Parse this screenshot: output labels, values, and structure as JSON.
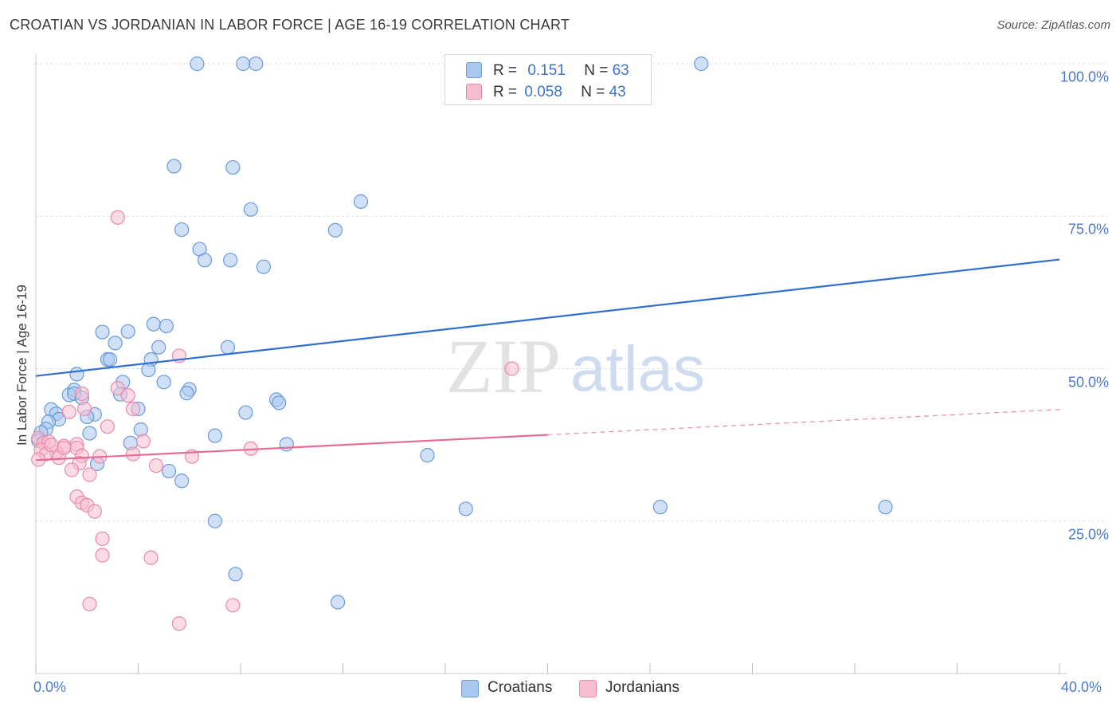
{
  "title": "CROATIAN VS JORDANIAN IN LABOR FORCE | AGE 16-19 CORRELATION CHART",
  "source": "Source: ZipAtlas.com",
  "watermark": {
    "zip": "ZIP",
    "atlas": "atlas"
  },
  "legend": {
    "rows": [
      {
        "r_label": "R =",
        "r_value": "0.151",
        "n_label": "N =",
        "n_value": "63"
      },
      {
        "r_label": "R =",
        "r_value": "0.058",
        "n_label": "N =",
        "n_value": "43"
      }
    ]
  },
  "bottom_legend": [
    "Croatians",
    "Jordanians"
  ],
  "colors": {
    "croatians_fill": "#a9c8f0",
    "croatians_stroke": "#6a9ad8",
    "croatians_line": "#2f6fcf",
    "jordanians_fill": "#f7bdd0",
    "jordanians_stroke": "#e88aab",
    "jordanians_line": "#e56b98",
    "tick_text": "#4a7bc8",
    "grid": "#dddddd"
  },
  "chart_data": {
    "type": "scatter",
    "title": "CROATIAN VS JORDANIAN IN LABOR FORCE | AGE 16-19 CORRELATION CHART",
    "xlabel": "",
    "ylabel": "In Labor Force | Age 16-19",
    "xlim": [
      0,
      40
    ],
    "ylim": [
      0,
      100
    ],
    "x_tick_labels": [
      "0.0%",
      "40.0%"
    ],
    "y_ticks": [
      100,
      75,
      50,
      25
    ],
    "y_tick_labels": [
      "100.0%",
      "75.0%",
      "50.0%",
      "25.0%"
    ],
    "series": [
      {
        "name": "Croatians",
        "R": 0.151,
        "N": 63,
        "trend": {
          "x0": 0,
          "y0": 48.8,
          "x1": 40,
          "y1": 67.9,
          "dashed_from": null
        },
        "points": [
          [
            6.3,
            100
          ],
          [
            8.1,
            100
          ],
          [
            8.6,
            100
          ],
          [
            26.0,
            100
          ],
          [
            5.4,
            83.2
          ],
          [
            7.7,
            83.0
          ],
          [
            12.7,
            77.4
          ],
          [
            8.4,
            76.1
          ],
          [
            5.7,
            72.8
          ],
          [
            11.7,
            72.7
          ],
          [
            6.4,
            69.6
          ],
          [
            6.6,
            67.8
          ],
          [
            7.6,
            67.8
          ],
          [
            8.9,
            66.7
          ],
          [
            2.6,
            56.0
          ],
          [
            3.6,
            56.1
          ],
          [
            4.6,
            57.3
          ],
          [
            5.1,
            57.0
          ],
          [
            3.1,
            54.2
          ],
          [
            4.8,
            53.5
          ],
          [
            7.5,
            53.5
          ],
          [
            2.8,
            51.5
          ],
          [
            2.9,
            51.5
          ],
          [
            4.5,
            51.5
          ],
          [
            4.4,
            49.8
          ],
          [
            1.6,
            49.1
          ],
          [
            3.4,
            47.8
          ],
          [
            5.0,
            47.8
          ],
          [
            1.5,
            46.5
          ],
          [
            6.0,
            46.6
          ],
          [
            5.9,
            46.0
          ],
          [
            1.3,
            45.7
          ],
          [
            1.5,
            45.9
          ],
          [
            3.3,
            45.8
          ],
          [
            1.8,
            45.2
          ],
          [
            9.4,
            44.9
          ],
          [
            9.5,
            44.4
          ],
          [
            0.6,
            43.3
          ],
          [
            4.0,
            43.4
          ],
          [
            0.8,
            42.6
          ],
          [
            8.2,
            42.8
          ],
          [
            2.3,
            42.5
          ],
          [
            2.0,
            42.1
          ],
          [
            0.9,
            41.7
          ],
          [
            0.5,
            41.3
          ],
          [
            0.4,
            40.1
          ],
          [
            4.1,
            40.0
          ],
          [
            0.2,
            39.5
          ],
          [
            2.1,
            39.4
          ],
          [
            7.0,
            39.0
          ],
          [
            3.7,
            37.8
          ],
          [
            9.8,
            37.6
          ],
          [
            15.3,
            35.8
          ],
          [
            2.4,
            34.4
          ],
          [
            5.2,
            33.2
          ],
          [
            5.7,
            31.6
          ],
          [
            16.8,
            27.0
          ],
          [
            24.4,
            27.3
          ],
          [
            33.2,
            27.3
          ],
          [
            7.0,
            25.0
          ],
          [
            7.8,
            16.3
          ],
          [
            11.8,
            11.7
          ],
          [
            0.1,
            38.2
          ]
        ]
      },
      {
        "name": "Jordanians",
        "R": 0.058,
        "N": 43,
        "trend": {
          "x0": 0,
          "y0": 35.0,
          "x1": 40,
          "y1": 43.3,
          "dashed_from": 20
        },
        "points": [
          [
            3.2,
            74.8
          ],
          [
            5.6,
            52.1
          ],
          [
            18.6,
            50.0
          ],
          [
            1.8,
            45.9
          ],
          [
            3.2,
            46.8
          ],
          [
            3.6,
            45.6
          ],
          [
            1.3,
            42.9
          ],
          [
            1.9,
            43.4
          ],
          [
            3.8,
            43.4
          ],
          [
            2.8,
            40.5
          ],
          [
            0.1,
            38.6
          ],
          [
            0.3,
            37.8
          ],
          [
            0.5,
            38.0
          ],
          [
            1.6,
            37.6
          ],
          [
            4.2,
            38.1
          ],
          [
            0.2,
            36.7
          ],
          [
            1.1,
            37.3
          ],
          [
            1.6,
            37.0
          ],
          [
            0.8,
            36.3
          ],
          [
            8.4,
            36.9
          ],
          [
            0.4,
            36.0
          ],
          [
            1.8,
            35.7
          ],
          [
            3.8,
            36.0
          ],
          [
            6.1,
            35.6
          ],
          [
            0.9,
            35.4
          ],
          [
            2.5,
            35.6
          ],
          [
            0.1,
            35.1
          ],
          [
            1.7,
            34.5
          ],
          [
            4.7,
            34.1
          ],
          [
            1.4,
            33.4
          ],
          [
            2.1,
            32.6
          ],
          [
            1.6,
            29.0
          ],
          [
            1.8,
            28.0
          ],
          [
            2.0,
            27.6
          ],
          [
            2.3,
            26.6
          ],
          [
            2.6,
            22.1
          ],
          [
            2.6,
            19.4
          ],
          [
            4.5,
            19.0
          ],
          [
            2.1,
            11.4
          ],
          [
            7.7,
            11.2
          ],
          [
            5.6,
            8.2
          ],
          [
            1.1,
            37.0
          ],
          [
            0.6,
            37.5
          ]
        ]
      }
    ]
  }
}
